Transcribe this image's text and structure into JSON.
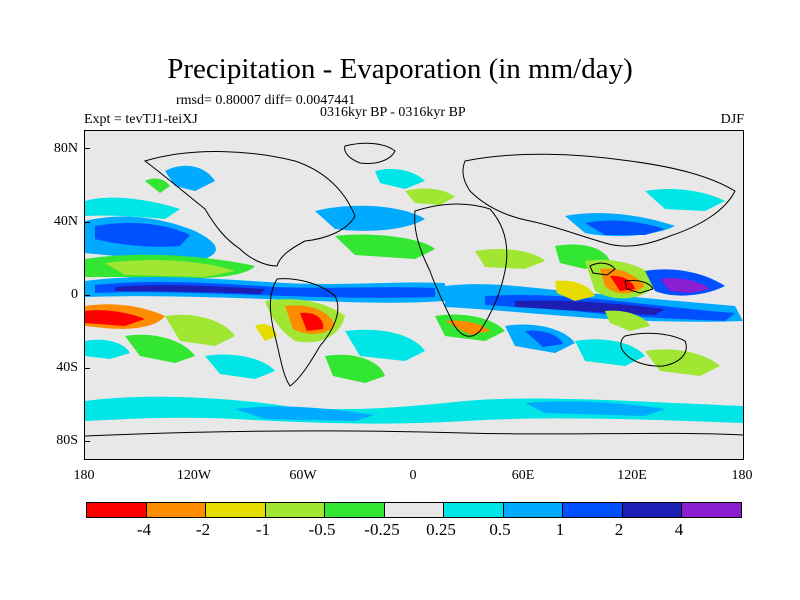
{
  "header": {
    "title": "Precipitation - Evaporation (in mm/day)",
    "subtitle": "rmsd= 0.80007  diff= 0.0047441",
    "period": "0316kyr BP - 0316kyr BP",
    "experiment": "Expt = tevTJ1-teiXJ",
    "season": "DJF"
  },
  "axes": {
    "y_ticks": [
      "80N",
      "40N",
      "0",
      "40S",
      "80S"
    ],
    "x_ticks": [
      "180",
      "120W",
      "60W",
      "0",
      "60E",
      "120E",
      "180"
    ]
  },
  "colorbar": {
    "colors": [
      "#ff0000",
      "#ff8c00",
      "#e6dc00",
      "#a0e632",
      "#32e632",
      "#e8e8e8",
      "#00e6e6",
      "#00aaff",
      "#0050ff",
      "#1e1eb4",
      "#8c1ed2"
    ],
    "labels": [
      "-4",
      "-2",
      "-1",
      "-0.5",
      "-0.25",
      "0.25",
      "0.5",
      "1",
      "2",
      "4"
    ]
  }
}
